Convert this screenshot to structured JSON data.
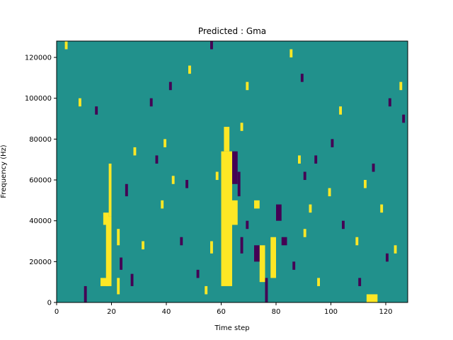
{
  "chart_data": {
    "type": "heatmap",
    "title": "Predicted : Gma",
    "xlabel": "Time step",
    "ylabel": "Frequency (Hz)",
    "xlim": [
      0,
      128
    ],
    "ylim": [
      0,
      128000
    ],
    "xticks": [
      0,
      20,
      40,
      60,
      80,
      100,
      120
    ],
    "yticks": [
      0,
      20000,
      40000,
      60000,
      80000,
      100000,
      120000
    ],
    "xtick_labels": [
      "0",
      "20",
      "40",
      "60",
      "80",
      "100",
      "120"
    ],
    "ytick_labels": [
      "0",
      "20000",
      "40000",
      "60000",
      "80000",
      "100000",
      "120000"
    ],
    "colormap": "viridis",
    "background_value": 0,
    "value_colors": {
      "-1": "#440154",
      "0": "#21918c",
      "1": "#fde725"
    },
    "grid": false,
    "cells": [
      {
        "t0": 60,
        "t1": 64,
        "f0": 8000,
        "f1": 74000,
        "v": 1
      },
      {
        "t0": 61,
        "t1": 63,
        "f0": 74000,
        "f1": 86000,
        "v": 1
      },
      {
        "t0": 18,
        "t1": 20,
        "f0": 8000,
        "f1": 42000,
        "v": 1
      },
      {
        "t0": 19,
        "t1": 20,
        "f0": 42000,
        "f1": 68000,
        "v": 1
      },
      {
        "t0": 17,
        "t1": 19,
        "f0": 38000,
        "f1": 44000,
        "v": 1
      },
      {
        "t0": 16,
        "t1": 19,
        "f0": 8000,
        "f1": 12000,
        "v": 1
      },
      {
        "t0": 113,
        "t1": 117,
        "f0": 0,
        "f1": 4000,
        "v": 1
      },
      {
        "t0": 74,
        "t1": 76,
        "f0": 10000,
        "f1": 28000,
        "v": 1
      },
      {
        "t0": 78,
        "t1": 80,
        "f0": 12000,
        "f1": 32000,
        "v": 1
      },
      {
        "t0": 64,
        "t1": 66,
        "f0": 38000,
        "f1": 50000,
        "v": 1
      },
      {
        "t0": 72,
        "t1": 74,
        "f0": 46000,
        "f1": 50000,
        "v": 1
      },
      {
        "t0": 22,
        "t1": 23,
        "f0": 4000,
        "f1": 12000,
        "v": 1
      },
      {
        "t0": 22,
        "t1": 23,
        "f0": 28000,
        "f1": 36000,
        "v": 1
      },
      {
        "t0": 31,
        "t1": 32,
        "f0": 26000,
        "f1": 30000,
        "v": 1
      },
      {
        "t0": 28,
        "t1": 29,
        "f0": 72000,
        "f1": 76000,
        "v": 1
      },
      {
        "t0": 42,
        "t1": 43,
        "f0": 58000,
        "f1": 62000,
        "v": 1
      },
      {
        "t0": 38,
        "t1": 39,
        "f0": 46000,
        "f1": 50000,
        "v": 1
      },
      {
        "t0": 39,
        "t1": 40,
        "f0": 76000,
        "f1": 80000,
        "v": 1
      },
      {
        "t0": 54,
        "t1": 55,
        "f0": 4000,
        "f1": 8000,
        "v": 1
      },
      {
        "t0": 56,
        "t1": 57,
        "f0": 24000,
        "f1": 30000,
        "v": 1
      },
      {
        "t0": 58,
        "t1": 59,
        "f0": 60000,
        "f1": 64000,
        "v": 1
      },
      {
        "t0": 67,
        "t1": 68,
        "f0": 84000,
        "f1": 88000,
        "v": 1
      },
      {
        "t0": 69,
        "t1": 70,
        "f0": 104000,
        "f1": 108000,
        "v": 1
      },
      {
        "t0": 88,
        "t1": 89,
        "f0": 68000,
        "f1": 72000,
        "v": 1
      },
      {
        "t0": 90,
        "t1": 91,
        "f0": 32000,
        "f1": 36000,
        "v": 1
      },
      {
        "t0": 92,
        "t1": 93,
        "f0": 44000,
        "f1": 48000,
        "v": 1
      },
      {
        "t0": 95,
        "t1": 96,
        "f0": 8000,
        "f1": 12000,
        "v": 1
      },
      {
        "t0": 99,
        "t1": 100,
        "f0": 52000,
        "f1": 56000,
        "v": 1
      },
      {
        "t0": 103,
        "t1": 104,
        "f0": 92000,
        "f1": 96000,
        "v": 1
      },
      {
        "t0": 109,
        "t1": 110,
        "f0": 28000,
        "f1": 32000,
        "v": 1
      },
      {
        "t0": 112,
        "t1": 113,
        "f0": 56000,
        "f1": 60000,
        "v": 1
      },
      {
        "t0": 118,
        "t1": 119,
        "f0": 44000,
        "f1": 48000,
        "v": 1
      },
      {
        "t0": 123,
        "t1": 124,
        "f0": 24000,
        "f1": 28000,
        "v": 1
      },
      {
        "t0": 125,
        "t1": 126,
        "f0": 104000,
        "f1": 108000,
        "v": 1
      },
      {
        "t0": 3,
        "t1": 4,
        "f0": 124000,
        "f1": 128000,
        "v": 1
      },
      {
        "t0": 8,
        "t1": 9,
        "f0": 96000,
        "f1": 100000,
        "v": 1
      },
      {
        "t0": 48,
        "t1": 49,
        "f0": 112000,
        "f1": 116000,
        "v": 1
      },
      {
        "t0": 85,
        "t1": 86,
        "f0": 120000,
        "f1": 124000,
        "v": 1
      },
      {
        "t0": 64,
        "t1": 66,
        "f0": 58000,
        "f1": 74000,
        "v": -1
      },
      {
        "t0": 66,
        "t1": 67,
        "f0": 52000,
        "f1": 64000,
        "v": -1
      },
      {
        "t0": 67,
        "t1": 68,
        "f0": 24000,
        "f1": 32000,
        "v": -1
      },
      {
        "t0": 72,
        "t1": 74,
        "f0": 20000,
        "f1": 28000,
        "v": -1
      },
      {
        "t0": 76,
        "t1": 77,
        "f0": 0,
        "f1": 12000,
        "v": -1
      },
      {
        "t0": 82,
        "t1": 84,
        "f0": 28000,
        "f1": 32000,
        "v": -1
      },
      {
        "t0": 80,
        "t1": 82,
        "f0": 40000,
        "f1": 48000,
        "v": -1
      },
      {
        "t0": 90,
        "t1": 91,
        "f0": 60000,
        "f1": 64000,
        "v": -1
      },
      {
        "t0": 94,
        "t1": 95,
        "f0": 68000,
        "f1": 72000,
        "v": -1
      },
      {
        "t0": 100,
        "t1": 101,
        "f0": 76000,
        "f1": 80000,
        "v": -1
      },
      {
        "t0": 23,
        "t1": 24,
        "f0": 16000,
        "f1": 22000,
        "v": -1
      },
      {
        "t0": 25,
        "t1": 26,
        "f0": 52000,
        "f1": 58000,
        "v": -1
      },
      {
        "t0": 10,
        "t1": 11,
        "f0": 0,
        "f1": 8000,
        "v": -1
      },
      {
        "t0": 14,
        "t1": 15,
        "f0": 92000,
        "f1": 96000,
        "v": -1
      },
      {
        "t0": 27,
        "t1": 28,
        "f0": 8000,
        "f1": 14000,
        "v": -1
      },
      {
        "t0": 34,
        "t1": 35,
        "f0": 96000,
        "f1": 100000,
        "v": -1
      },
      {
        "t0": 36,
        "t1": 37,
        "f0": 68000,
        "f1": 72000,
        "v": -1
      },
      {
        "t0": 41,
        "t1": 42,
        "f0": 104000,
        "f1": 108000,
        "v": -1
      },
      {
        "t0": 45,
        "t1": 46,
        "f0": 28000,
        "f1": 32000,
        "v": -1
      },
      {
        "t0": 47,
        "t1": 48,
        "f0": 56000,
        "f1": 60000,
        "v": -1
      },
      {
        "t0": 51,
        "t1": 52,
        "f0": 12000,
        "f1": 16000,
        "v": -1
      },
      {
        "t0": 69,
        "t1": 70,
        "f0": 36000,
        "f1": 40000,
        "v": -1
      },
      {
        "t0": 86,
        "t1": 87,
        "f0": 16000,
        "f1": 20000,
        "v": -1
      },
      {
        "t0": 104,
        "t1": 105,
        "f0": 36000,
        "f1": 40000,
        "v": -1
      },
      {
        "t0": 110,
        "t1": 111,
        "f0": 8000,
        "f1": 12000,
        "v": -1
      },
      {
        "t0": 115,
        "t1": 116,
        "f0": 64000,
        "f1": 68000,
        "v": -1
      },
      {
        "t0": 120,
        "t1": 121,
        "f0": 20000,
        "f1": 24000,
        "v": -1
      },
      {
        "t0": 121,
        "t1": 122,
        "f0": 96000,
        "f1": 100000,
        "v": -1
      },
      {
        "t0": 126,
        "t1": 127,
        "f0": 88000,
        "f1": 92000,
        "v": -1
      },
      {
        "t0": 56,
        "t1": 57,
        "f0": 124000,
        "f1": 128000,
        "v": -1
      },
      {
        "t0": 89,
        "t1": 90,
        "f0": 108000,
        "f1": 112000,
        "v": -1
      }
    ]
  }
}
